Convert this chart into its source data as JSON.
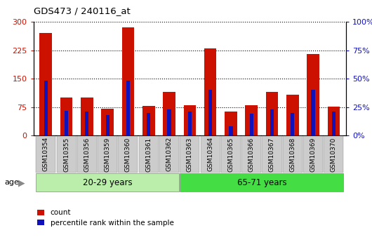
{
  "title": "GDS473 / 240116_at",
  "categories": [
    "GSM10354",
    "GSM10355",
    "GSM10356",
    "GSM10359",
    "GSM10360",
    "GSM10361",
    "GSM10362",
    "GSM10363",
    "GSM10364",
    "GSM10365",
    "GSM10366",
    "GSM10367",
    "GSM10368",
    "GSM10369",
    "GSM10370"
  ],
  "red_values": [
    270,
    100,
    100,
    70,
    285,
    78,
    115,
    80,
    230,
    63,
    80,
    115,
    108,
    215,
    77
  ],
  "blue_percentile": [
    48,
    22,
    21,
    18,
    48,
    20,
    23,
    21,
    40,
    8,
    19,
    23,
    20,
    40,
    21
  ],
  "group1_label": "20-29 years",
  "group2_label": "65-71 years",
  "group1_count": 7,
  "group2_count": 8,
  "ylim_left": [
    0,
    300
  ],
  "ylim_right": [
    0,
    100
  ],
  "yticks_left": [
    0,
    75,
    150,
    225,
    300
  ],
  "yticks_right": [
    0,
    25,
    50,
    75,
    100
  ],
  "ytick_labels_left": [
    "0",
    "75",
    "150",
    "225",
    "300"
  ],
  "ytick_labels_right": [
    "0%",
    "25%",
    "50%",
    "75%",
    "100%"
  ],
  "red_color": "#CC1100",
  "blue_color": "#1111BB",
  "group1_bg": "#BBEEAA",
  "group2_bg": "#44DD44",
  "legend_red": "count",
  "legend_blue": "percentile rank within the sample",
  "age_label": "age",
  "xtick_bg": "#CCCCCC"
}
